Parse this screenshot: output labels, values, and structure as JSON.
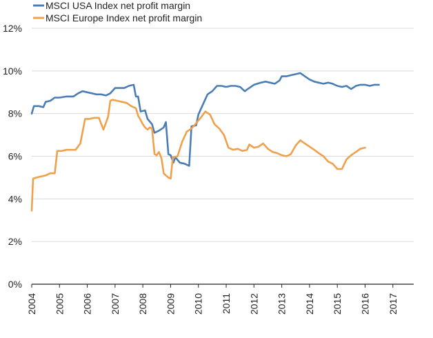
{
  "chart_data": {
    "type": "line",
    "title": "",
    "xlabel": "",
    "ylabel": "",
    "x_ticks": [
      "2004",
      "2005",
      "2006",
      "2007",
      "2008",
      "2009",
      "2010",
      "2011",
      "2012",
      "2013",
      "2014",
      "2015",
      "2016",
      "2017"
    ],
    "y_ticks": [
      "0%",
      "2%",
      "4%",
      "6%",
      "8%",
      "10%",
      "12%"
    ],
    "xlim": [
      2004.0,
      2017.75
    ],
    "ylim": [
      0,
      12
    ],
    "grid": "horizontal",
    "legend": "top-left",
    "series": [
      {
        "name": "MSCI USA Index net profit margin",
        "color": "#4a7db5",
        "points": [
          [
            2004.0,
            8.0
          ],
          [
            2004.08,
            8.35
          ],
          [
            2004.25,
            8.35
          ],
          [
            2004.42,
            8.3
          ],
          [
            2004.5,
            8.55
          ],
          [
            2004.67,
            8.6
          ],
          [
            2004.83,
            8.75
          ],
          [
            2005.0,
            8.75
          ],
          [
            2005.25,
            8.8
          ],
          [
            2005.5,
            8.8
          ],
          [
            2005.67,
            8.95
          ],
          [
            2005.83,
            9.05
          ],
          [
            2006.0,
            9.0
          ],
          [
            2006.17,
            8.95
          ],
          [
            2006.33,
            8.9
          ],
          [
            2006.5,
            8.9
          ],
          [
            2006.67,
            8.85
          ],
          [
            2006.83,
            8.95
          ],
          [
            2007.0,
            9.2
          ],
          [
            2007.17,
            9.2
          ],
          [
            2007.33,
            9.2
          ],
          [
            2007.5,
            9.3
          ],
          [
            2007.67,
            9.35
          ],
          [
            2007.75,
            8.8
          ],
          [
            2007.83,
            8.8
          ],
          [
            2007.92,
            8.1
          ],
          [
            2008.08,
            8.15
          ],
          [
            2008.17,
            7.75
          ],
          [
            2008.33,
            7.5
          ],
          [
            2008.42,
            7.1
          ],
          [
            2008.58,
            7.2
          ],
          [
            2008.75,
            7.35
          ],
          [
            2008.83,
            7.6
          ],
          [
            2008.92,
            6.1
          ],
          [
            2009.0,
            6.05
          ],
          [
            2009.1,
            5.7
          ],
          [
            2009.17,
            5.95
          ],
          [
            2009.33,
            5.7
          ],
          [
            2009.5,
            5.65
          ],
          [
            2009.67,
            5.55
          ],
          [
            2009.75,
            7.4
          ],
          [
            2009.92,
            7.45
          ],
          [
            2010.0,
            7.95
          ],
          [
            2010.17,
            8.45
          ],
          [
            2010.33,
            8.9
          ],
          [
            2010.5,
            9.05
          ],
          [
            2010.67,
            9.3
          ],
          [
            2010.83,
            9.3
          ],
          [
            2011.0,
            9.25
          ],
          [
            2011.17,
            9.3
          ],
          [
            2011.33,
            9.3
          ],
          [
            2011.5,
            9.25
          ],
          [
            2011.67,
            9.05
          ],
          [
            2011.83,
            9.2
          ],
          [
            2012.0,
            9.35
          ],
          [
            2012.25,
            9.45
          ],
          [
            2012.42,
            9.5
          ],
          [
            2012.58,
            9.45
          ],
          [
            2012.75,
            9.4
          ],
          [
            2012.92,
            9.55
          ],
          [
            2013.0,
            9.75
          ],
          [
            2013.17,
            9.75
          ],
          [
            2013.33,
            9.8
          ],
          [
            2013.5,
            9.85
          ],
          [
            2013.67,
            9.9
          ],
          [
            2013.83,
            9.75
          ],
          [
            2014.0,
            9.6
          ],
          [
            2014.17,
            9.5
          ],
          [
            2014.33,
            9.45
          ],
          [
            2014.5,
            9.4
          ],
          [
            2014.67,
            9.45
          ],
          [
            2014.83,
            9.4
          ],
          [
            2015.0,
            9.3
          ],
          [
            2015.17,
            9.25
          ],
          [
            2015.33,
            9.3
          ],
          [
            2015.5,
            9.15
          ],
          [
            2015.67,
            9.3
          ],
          [
            2015.83,
            9.35
          ],
          [
            2016.0,
            9.35
          ],
          [
            2016.17,
            9.3
          ],
          [
            2016.33,
            9.35
          ],
          [
            2016.5,
            9.35
          ]
        ]
      },
      {
        "name": "MSCI Europe Index net profit margin",
        "color": "#f0a04b",
        "points": [
          [
            2004.0,
            3.45
          ],
          [
            2004.05,
            4.95
          ],
          [
            2004.17,
            5.0
          ],
          [
            2004.33,
            5.05
          ],
          [
            2004.5,
            5.1
          ],
          [
            2004.67,
            5.2
          ],
          [
            2004.83,
            5.2
          ],
          [
            2004.92,
            6.25
          ],
          [
            2005.08,
            6.25
          ],
          [
            2005.25,
            6.3
          ],
          [
            2005.42,
            6.3
          ],
          [
            2005.58,
            6.3
          ],
          [
            2005.75,
            6.6
          ],
          [
            2005.92,
            7.75
          ],
          [
            2006.08,
            7.75
          ],
          [
            2006.25,
            7.8
          ],
          [
            2006.42,
            7.8
          ],
          [
            2006.58,
            7.25
          ],
          [
            2006.75,
            7.85
          ],
          [
            2006.83,
            8.6
          ],
          [
            2006.92,
            8.65
          ],
          [
            2007.08,
            8.6
          ],
          [
            2007.25,
            8.55
          ],
          [
            2007.42,
            8.5
          ],
          [
            2007.58,
            8.35
          ],
          [
            2007.75,
            8.25
          ],
          [
            2007.83,
            7.9
          ],
          [
            2007.92,
            7.7
          ],
          [
            2008.0,
            7.5
          ],
          [
            2008.08,
            7.35
          ],
          [
            2008.17,
            7.25
          ],
          [
            2008.25,
            7.35
          ],
          [
            2008.33,
            7.3
          ],
          [
            2008.42,
            6.1
          ],
          [
            2008.5,
            6.05
          ],
          [
            2008.58,
            6.2
          ],
          [
            2008.67,
            5.9
          ],
          [
            2008.75,
            5.2
          ],
          [
            2008.83,
            5.1
          ],
          [
            2008.92,
            5.0
          ],
          [
            2009.0,
            4.95
          ],
          [
            2009.08,
            5.95
          ],
          [
            2009.25,
            6.0
          ],
          [
            2009.42,
            6.7
          ],
          [
            2009.58,
            7.15
          ],
          [
            2009.75,
            7.3
          ],
          [
            2009.92,
            7.55
          ],
          [
            2010.08,
            7.8
          ],
          [
            2010.25,
            8.1
          ],
          [
            2010.42,
            7.95
          ],
          [
            2010.58,
            7.5
          ],
          [
            2010.75,
            7.3
          ],
          [
            2010.92,
            7.0
          ],
          [
            2011.08,
            6.4
          ],
          [
            2011.25,
            6.3
          ],
          [
            2011.42,
            6.35
          ],
          [
            2011.58,
            6.25
          ],
          [
            2011.75,
            6.3
          ],
          [
            2011.83,
            6.55
          ],
          [
            2012.0,
            6.4
          ],
          [
            2012.17,
            6.45
          ],
          [
            2012.33,
            6.6
          ],
          [
            2012.5,
            6.35
          ],
          [
            2012.67,
            6.2
          ],
          [
            2012.83,
            6.15
          ],
          [
            2013.0,
            6.05
          ],
          [
            2013.17,
            6.0
          ],
          [
            2013.33,
            6.1
          ],
          [
            2013.5,
            6.5
          ],
          [
            2013.67,
            6.75
          ],
          [
            2013.83,
            6.6
          ],
          [
            2014.0,
            6.45
          ],
          [
            2014.17,
            6.3
          ],
          [
            2014.33,
            6.15
          ],
          [
            2014.5,
            6.0
          ],
          [
            2014.67,
            5.75
          ],
          [
            2014.83,
            5.65
          ],
          [
            2015.0,
            5.4
          ],
          [
            2015.17,
            5.4
          ],
          [
            2015.33,
            5.85
          ],
          [
            2015.5,
            6.05
          ],
          [
            2015.67,
            6.2
          ],
          [
            2015.83,
            6.35
          ],
          [
            2016.0,
            6.4
          ]
        ]
      }
    ]
  }
}
